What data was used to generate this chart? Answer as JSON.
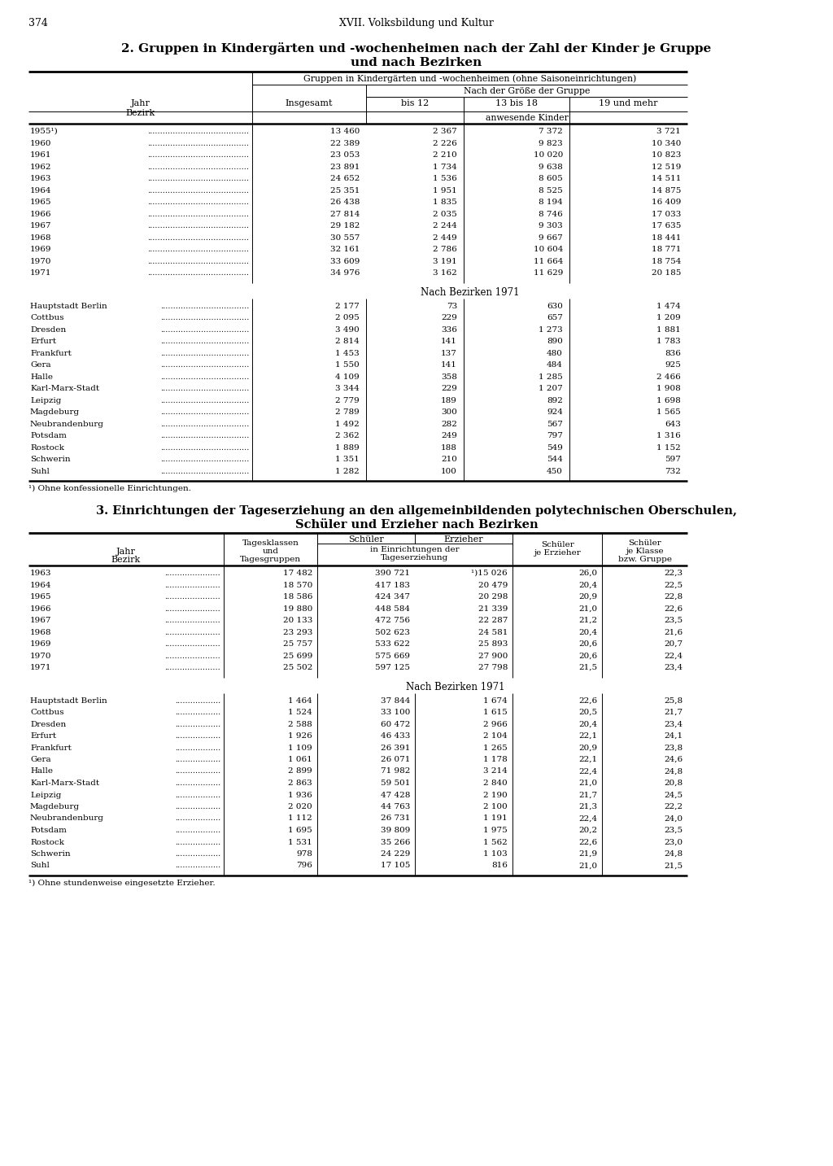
{
  "page_number": "374",
  "header_center": "XVII. Volksbildung und Kultur",
  "table1_title_line1": "2. Gruppen in Kindergärten und -wochenheimen nach der Zahl der Kinder je Gruppe",
  "table1_title_line2": "und nach Bezirken",
  "table1_col_header_span": "Gruppen in Kindergärten und -wochenheimen (ohne Saisoneinrichtungen)",
  "table1_subheader1": "Nach der Größe der Gruppe",
  "table1_anwesende": "anwesende Kinder",
  "table1_years_data": [
    [
      "1955¹)",
      "13 460",
      "2 367",
      "7 372",
      "3 721"
    ],
    [
      "1960",
      "22 389",
      "2 226",
      "9 823",
      "10 340"
    ],
    [
      "1961",
      "23 053",
      "2 210",
      "10 020",
      "10 823"
    ],
    [
      "1962",
      "23 891",
      "1 734",
      "9 638",
      "12 519"
    ],
    [
      "1963",
      "24 652",
      "1 536",
      "8 605",
      "14 511"
    ],
    [
      "1964",
      "25 351",
      "1 951",
      "8 525",
      "14 875"
    ],
    [
      "1965",
      "26 438",
      "1 835",
      "8 194",
      "16 409"
    ],
    [
      "1966",
      "27 814",
      "2 035",
      "8 746",
      "17 033"
    ],
    [
      "1967",
      "29 182",
      "2 244",
      "9 303",
      "17 635"
    ],
    [
      "1968",
      "30 557",
      "2 449",
      "9 667",
      "18 441"
    ],
    [
      "1969",
      "32 161",
      "2 786",
      "10 604",
      "18 771"
    ],
    [
      "1970",
      "33 609",
      "3 191",
      "11 664",
      "18 754"
    ],
    [
      "1971",
      "34 976",
      "3 162",
      "11 629",
      "20 185"
    ]
  ],
  "table1_bezirke_header": "Nach Bezirken 1971",
  "table1_bezirke_data": [
    [
      "Hauptstadt Berlin",
      "2 177",
      "73",
      "630",
      "1 474"
    ],
    [
      "Cottbus",
      "2 095",
      "229",
      "657",
      "1 209"
    ],
    [
      "Dresden",
      "3 490",
      "336",
      "1 273",
      "1 881"
    ],
    [
      "Erfurt",
      "2 814",
      "141",
      "890",
      "1 783"
    ],
    [
      "Frankfurt",
      "1 453",
      "137",
      "480",
      "836"
    ],
    [
      "Gera",
      "1 550",
      "141",
      "484",
      "925"
    ],
    [
      "Halle",
      "4 109",
      "358",
      "1 285",
      "2 466"
    ],
    [
      "Karl-Marx-Stadt",
      "3 344",
      "229",
      "1 207",
      "1 908"
    ],
    [
      "Leipzig",
      "2 779",
      "189",
      "892",
      "1 698"
    ],
    [
      "Magdeburg",
      "2 789",
      "300",
      "924",
      "1 565"
    ],
    [
      "Neubrandenburg",
      "1 492",
      "282",
      "567",
      "643"
    ],
    [
      "Potsdam",
      "2 362",
      "249",
      "797",
      "1 316"
    ],
    [
      "Rostock",
      "1 889",
      "188",
      "549",
      "1 152"
    ],
    [
      "Schwerin",
      "1 351",
      "210",
      "544",
      "597"
    ],
    [
      "Suhl",
      "1 282",
      "100",
      "450",
      "732"
    ]
  ],
  "table1_footnote": "¹) Ohne konfessionelle Einrichtungen.",
  "table2_title_line1": "3. Einrichtungen der Tageserziehung an den allgemeinbildenden polytechnischen Oberschulen,",
  "table2_title_line2": "Schüler und Erzieher nach Bezirken",
  "table2_years_data": [
    [
      "1963",
      "17 482",
      "390 721",
      "¹)15 026",
      "26,0",
      "22,3"
    ],
    [
      "1964",
      "18 570",
      "417 183",
      "20 479",
      "20,4",
      "22,5"
    ],
    [
      "1965",
      "18 586",
      "424 347",
      "20 298",
      "20,9",
      "22,8"
    ],
    [
      "1966",
      "19 880",
      "448 584",
      "21 339",
      "21,0",
      "22,6"
    ],
    [
      "1967",
      "20 133",
      "472 756",
      "22 287",
      "21,2",
      "23,5"
    ],
    [
      "1968",
      "23 293",
      "502 623",
      "24 581",
      "20,4",
      "21,6"
    ],
    [
      "1969",
      "25 757",
      "533 622",
      "25 893",
      "20,6",
      "20,7"
    ],
    [
      "1970",
      "25 699",
      "575 669",
      "27 900",
      "20,6",
      "22,4"
    ],
    [
      "1971",
      "25 502",
      "597 125",
      "27 798",
      "21,5",
      "23,4"
    ]
  ],
  "table2_bezirke_header": "Nach Bezirken 1971",
  "table2_bezirke_data": [
    [
      "Hauptstadt Berlin",
      "1 464",
      "37 844",
      "1 674",
      "22,6",
      "25,8"
    ],
    [
      "Cottbus",
      "1 524",
      "33 100",
      "1 615",
      "20,5",
      "21,7"
    ],
    [
      "Dresden",
      "2 588",
      "60 472",
      "2 966",
      "20,4",
      "23,4"
    ],
    [
      "Erfurt",
      "1 926",
      "46 433",
      "2 104",
      "22,1",
      "24,1"
    ],
    [
      "Frankfurt",
      "1 109",
      "26 391",
      "1 265",
      "20,9",
      "23,8"
    ],
    [
      "Gera",
      "1 061",
      "26 071",
      "1 178",
      "22,1",
      "24,6"
    ],
    [
      "Halle",
      "2 899",
      "71 982",
      "3 214",
      "22,4",
      "24,8"
    ],
    [
      "Karl-Marx-Stadt",
      "2 863",
      "59 501",
      "2 840",
      "21,0",
      "20,8"
    ],
    [
      "Leipzig",
      "1 936",
      "47 428",
      "2 190",
      "21,7",
      "24,5"
    ],
    [
      "Magdeburg",
      "2 020",
      "44 763",
      "2 100",
      "21,3",
      "22,2"
    ],
    [
      "Neubrandenburg",
      "1 112",
      "26 731",
      "1 191",
      "22,4",
      "24,0"
    ],
    [
      "Potsdam",
      "1 695",
      "39 809",
      "1 975",
      "20,2",
      "23,5"
    ],
    [
      "Rostock",
      "1 531",
      "35 266",
      "1 562",
      "22,6",
      "23,0"
    ],
    [
      "Schwerin",
      "978",
      "24 229",
      "1 103",
      "21,9",
      "24,8"
    ],
    [
      "Suhl",
      "796",
      "17 105",
      "816",
      "21,0",
      "21,5"
    ]
  ],
  "table2_footnote": "¹) Ohne stundenweise eingesetzte Erzieher."
}
